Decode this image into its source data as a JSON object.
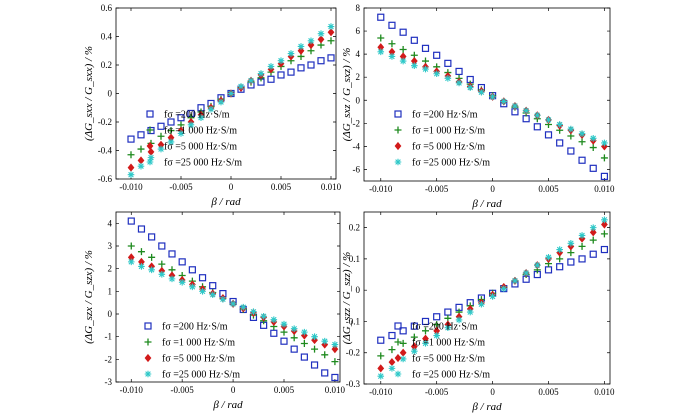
{
  "figure": {
    "legend": [
      {
        "label": "fσ =200 Hz·S/m",
        "sym": "fσ",
        "rest": " =200 Hz·S/m",
        "color": "#1f2fbf",
        "marker": "square"
      },
      {
        "label": "fσ =1 000 Hz·S/m",
        "sym": "fσ",
        "rest": " =1 000 Hz·S/m",
        "color": "#1e8a1e",
        "marker": "plus"
      },
      {
        "label": "fσ =5 000 Hz·S/m",
        "sym": "fσ",
        "rest": " =5 000 Hz·S/m",
        "color": "#d21a1a",
        "marker": "diamond"
      },
      {
        "label": "fσ =25 000 Hz·S/m",
        "sym": "fσ",
        "rest": " =25 000 Hz·S/m",
        "color": "#2ec8c8",
        "marker": "star"
      }
    ]
  },
  "chart_data": [
    {
      "type": "scatter",
      "title": "",
      "xlabel": "β / rad",
      "ylabel": "(ΔG_sxx / G_sxx) / %",
      "xlim": [
        -0.0115,
        0.0105
      ],
      "ylim": [
        -0.6,
        0.6
      ],
      "xticks": [
        -0.01,
        -0.005,
        0,
        0.005,
        0.01
      ],
      "xtick_labels": [
        "-0.010",
        "-0.005",
        "0",
        "0.005",
        "0.010"
      ],
      "yticks": [
        -0.6,
        -0.4,
        -0.2,
        0,
        0.2,
        0.4,
        0.6
      ],
      "ytick_labels": [
        "-0.6",
        "-0.4",
        "-0.2",
        "0",
        "0.2",
        "0.4",
        "0.6"
      ],
      "x": [
        -0.01,
        -0.009,
        -0.008,
        -0.007,
        -0.006,
        -0.005,
        -0.004,
        -0.003,
        -0.002,
        -0.001,
        0,
        0.001,
        0.002,
        0.003,
        0.004,
        0.005,
        0.006,
        0.007,
        0.008,
        0.009,
        0.01
      ],
      "series": [
        {
          "name": "fσ =200 Hz·S/m",
          "slope": 28,
          "values": [
            -0.32,
            -0.29,
            -0.26,
            -0.23,
            -0.2,
            -0.17,
            -0.14,
            -0.1,
            -0.07,
            -0.03,
            0,
            0.03,
            0.06,
            0.08,
            0.1,
            0.13,
            0.15,
            0.18,
            0.2,
            0.23,
            0.25
          ]
        },
        {
          "name": "fσ =1 000 Hz·S/m",
          "slope": 38,
          "values": [
            -0.43,
            -0.39,
            -0.35,
            -0.3,
            -0.26,
            -0.22,
            -0.17,
            -0.13,
            -0.09,
            -0.04,
            0,
            0.04,
            0.08,
            0.11,
            0.15,
            0.19,
            0.23,
            0.26,
            0.3,
            0.34,
            0.37
          ]
        },
        {
          "name": "fσ =5 000 Hz·S/m",
          "slope": 43,
          "values": [
            -0.52,
            -0.47,
            -0.41,
            -0.36,
            -0.31,
            -0.26,
            -0.2,
            -0.15,
            -0.1,
            -0.05,
            0,
            0.04,
            0.09,
            0.13,
            0.17,
            0.21,
            0.26,
            0.3,
            0.34,
            0.38,
            0.43
          ]
        },
        {
          "name": "fσ =25 000 Hz·S/m",
          "slope": 47,
          "values": [
            -0.57,
            -0.51,
            -0.45,
            -0.39,
            -0.34,
            -0.28,
            -0.22,
            -0.17,
            -0.11,
            -0.06,
            0,
            0.05,
            0.09,
            0.14,
            0.19,
            0.23,
            0.28,
            0.33,
            0.37,
            0.42,
            0.47
          ]
        }
      ]
    },
    {
      "type": "scatter",
      "title": "",
      "xlabel": "β / rad",
      "ylabel": "(ΔG_sxz / G_sxz) / %",
      "xlim": [
        -0.0115,
        0.0105
      ],
      "ylim": [
        -7,
        8
      ],
      "xticks": [
        -0.01,
        -0.005,
        0,
        0.005,
        0.01
      ],
      "xtick_labels": [
        "-0.010",
        "-0.005",
        "0",
        "0.005",
        "0.010"
      ],
      "yticks": [
        -6,
        -4,
        -2,
        0,
        2,
        4,
        6,
        8
      ],
      "ytick_labels": [
        "-6",
        "-4",
        "-2",
        "0",
        "2",
        "4",
        "6",
        "8"
      ],
      "x": [
        -0.01,
        -0.009,
        -0.008,
        -0.007,
        -0.006,
        -0.005,
        -0.004,
        -0.003,
        -0.002,
        -0.001,
        0,
        0.001,
        0.002,
        0.003,
        0.004,
        0.005,
        0.006,
        0.007,
        0.008,
        0.009,
        0.01
      ],
      "series": [
        {
          "name": "fσ =200 Hz·S/m",
          "values": [
            7.2,
            6.5,
            5.9,
            5.2,
            4.5,
            3.9,
            3.2,
            2.5,
            1.8,
            1.1,
            0.4,
            -0.3,
            -1.0,
            -1.6,
            -2.3,
            -3.0,
            -3.7,
            -4.4,
            -5.2,
            -5.9,
            -6.6
          ]
        },
        {
          "name": "fσ =1 000 Hz·S/m",
          "values": [
            5.4,
            4.9,
            4.4,
            3.9,
            3.4,
            2.9,
            2.4,
            1.9,
            1.4,
            0.9,
            0.4,
            -0.1,
            -0.6,
            -1.1,
            -1.6,
            -2.1,
            -2.6,
            -3.1,
            -3.6,
            -4.1,
            -5.0
          ]
        },
        {
          "name": "fσ =5 000 Hz·S/m",
          "values": [
            4.6,
            4.2,
            3.8,
            3.4,
            2.9,
            2.5,
            2.1,
            1.6,
            1.2,
            0.8,
            0.3,
            -0.1,
            -0.5,
            -0.9,
            -1.3,
            -1.7,
            -2.2,
            -2.6,
            -3.0,
            -3.5,
            -4.0
          ]
        },
        {
          "name": "fσ =25 000 Hz·S/m",
          "values": [
            4.2,
            3.8,
            3.4,
            3.0,
            2.7,
            2.3,
            1.9,
            1.5,
            1.1,
            0.7,
            0.3,
            -0.1,
            -0.5,
            -0.9,
            -1.3,
            -1.7,
            -2.1,
            -2.5,
            -2.9,
            -3.3,
            -3.7
          ]
        }
      ]
    },
    {
      "type": "scatter",
      "title": "",
      "xlabel": "β / rad",
      "ylabel": "(ΔG_szx / G_szx) / %",
      "xlim": [
        -0.0115,
        0.0105
      ],
      "ylim": [
        -3,
        4.5
      ],
      "xticks": [
        -0.01,
        -0.005,
        0,
        0.005,
        0.01
      ],
      "xtick_labels": [
        "-0.010",
        "-0.005",
        "0",
        "0.005",
        "0.010"
      ],
      "yticks": [
        -3,
        -2,
        -1,
        0,
        1,
        2,
        3,
        4
      ],
      "ytick_labels": [
        "-3",
        "-2",
        "-1",
        "0",
        "1",
        "2",
        "3",
        "4"
      ],
      "x": [
        -0.01,
        -0.009,
        -0.008,
        -0.007,
        -0.006,
        -0.005,
        -0.004,
        -0.003,
        -0.002,
        -0.001,
        0,
        0.001,
        0.002,
        0.003,
        0.004,
        0.005,
        0.006,
        0.007,
        0.008,
        0.009,
        0.01
      ],
      "series": [
        {
          "name": "fσ =200 Hz·S/m",
          "values": [
            4.1,
            3.75,
            3.4,
            3.0,
            2.65,
            2.3,
            1.95,
            1.6,
            1.25,
            0.9,
            0.55,
            0.2,
            -0.15,
            -0.5,
            -0.85,
            -1.2,
            -1.55,
            -1.9,
            -2.25,
            -2.6,
            -2.8
          ]
        },
        {
          "name": "fσ =1 000 Hz·S/m",
          "values": [
            3.0,
            2.75,
            2.5,
            2.2,
            1.95,
            1.7,
            1.45,
            1.2,
            0.95,
            0.7,
            0.45,
            0.2,
            -0.05,
            -0.3,
            -0.55,
            -0.8,
            -1.05,
            -1.3,
            -1.55,
            -1.8,
            -2.1
          ]
        },
        {
          "name": "fσ =5 000 Hz·S/m",
          "values": [
            2.5,
            2.3,
            2.1,
            1.9,
            1.7,
            1.5,
            1.3,
            1.1,
            0.9,
            0.7,
            0.45,
            0.25,
            0.05,
            -0.15,
            -0.35,
            -0.55,
            -0.75,
            -0.95,
            -1.15,
            -1.35,
            -1.55
          ]
        },
        {
          "name": "fσ =25 000 Hz·S/m",
          "values": [
            2.3,
            2.1,
            1.95,
            1.75,
            1.55,
            1.4,
            1.2,
            1.0,
            0.85,
            0.65,
            0.45,
            0.3,
            0.1,
            -0.1,
            -0.25,
            -0.45,
            -0.65,
            -0.8,
            -1.0,
            -1.2,
            -1.35
          ]
        }
      ]
    },
    {
      "type": "scatter",
      "title": "",
      "xlabel": "β / rad",
      "ylabel": "(ΔG_szz / G_szz) / %",
      "xlim": [
        -0.0115,
        0.0105
      ],
      "ylim": [
        -0.3,
        0.25
      ],
      "xticks": [
        -0.01,
        -0.005,
        0,
        0.005,
        0.01
      ],
      "xtick_labels": [
        "-0.010",
        "-0.005",
        "0",
        "0.005",
        "0.010"
      ],
      "yticks": [
        -0.3,
        -0.2,
        -0.1,
        0,
        0.1,
        0.2
      ],
      "ytick_labels": [
        "-0.3",
        "-0.2",
        "-0.1",
        "0",
        "0.1",
        "0.2"
      ],
      "x": [
        -0.01,
        -0.009,
        -0.008,
        -0.007,
        -0.006,
        -0.005,
        -0.004,
        -0.003,
        -0.002,
        -0.001,
        0,
        0.001,
        0.002,
        0.003,
        0.004,
        0.005,
        0.006,
        0.007,
        0.008,
        0.009,
        0.01
      ],
      "series": [
        {
          "name": "fσ =200 Hz·S/m",
          "values": [
            -0.16,
            -0.145,
            -0.13,
            -0.115,
            -0.1,
            -0.085,
            -0.07,
            -0.055,
            -0.04,
            -0.025,
            -0.01,
            0.005,
            0.02,
            0.035,
            0.05,
            0.065,
            0.075,
            0.09,
            0.1,
            0.115,
            0.13
          ]
        },
        {
          "name": "fσ =1 000 Hz·S/m",
          "values": [
            -0.21,
            -0.19,
            -0.17,
            -0.15,
            -0.13,
            -0.11,
            -0.09,
            -0.07,
            -0.05,
            -0.03,
            -0.01,
            0.01,
            0.03,
            0.05,
            0.065,
            0.085,
            0.1,
            0.12,
            0.14,
            0.16,
            0.18
          ]
        },
        {
          "name": "fσ =5 000 Hz·S/m",
          "values": [
            -0.25,
            -0.23,
            -0.2,
            -0.18,
            -0.155,
            -0.13,
            -0.11,
            -0.085,
            -0.06,
            -0.04,
            -0.015,
            0.01,
            0.03,
            0.055,
            0.08,
            0.1,
            0.12,
            0.14,
            0.165,
            0.185,
            0.21
          ]
        },
        {
          "name": "fσ =25 000 Hz·S/m",
          "values": [
            -0.275,
            -0.25,
            -0.22,
            -0.195,
            -0.17,
            -0.145,
            -0.12,
            -0.095,
            -0.07,
            -0.045,
            -0.02,
            0.005,
            0.03,
            0.055,
            0.08,
            0.105,
            0.13,
            0.15,
            0.175,
            0.2,
            0.225
          ]
        }
      ]
    }
  ]
}
